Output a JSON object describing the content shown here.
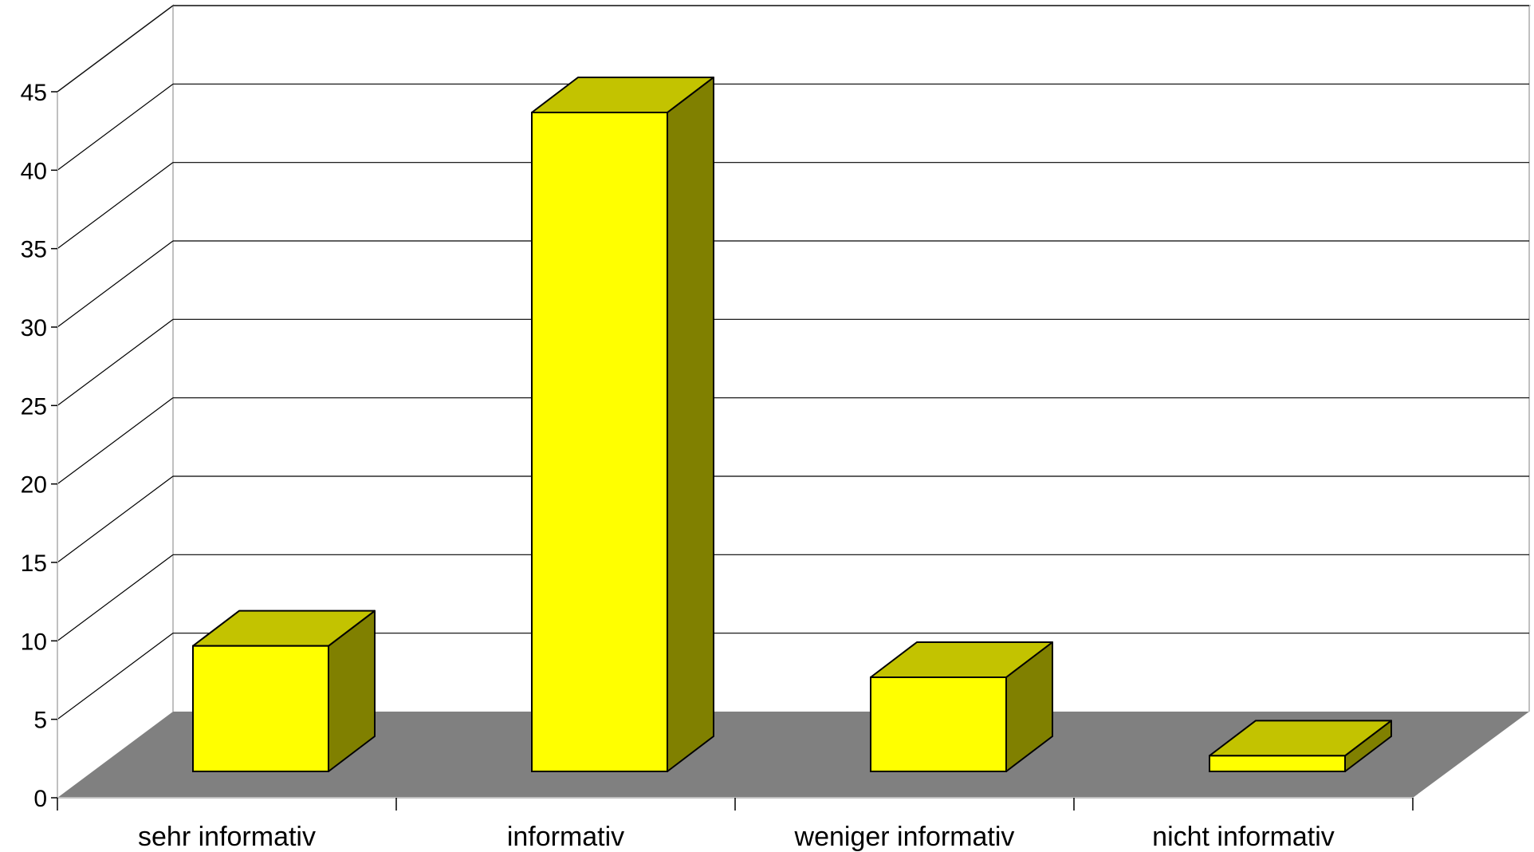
{
  "chart_data": {
    "type": "bar",
    "title": "",
    "xlabel": "",
    "ylabel": "",
    "categories": [
      "sehr informativ",
      "informativ",
      "weniger informativ",
      "nicht informativ"
    ],
    "values": [
      8,
      42,
      6,
      1
    ],
    "ylim": [
      0,
      45
    ],
    "yticks": [
      "0",
      "5",
      "10",
      "15",
      "20",
      "25",
      "30",
      "35",
      "40",
      "45"
    ],
    "grid": true,
    "legend": "none",
    "three_d": true,
    "colors": {
      "bar_front": "#ffff00",
      "bar_top": "#c3c300",
      "bar_side": "#808000",
      "floor": "#808080",
      "gridline": "#000000",
      "wall_edge": "#c0c0c0"
    }
  }
}
